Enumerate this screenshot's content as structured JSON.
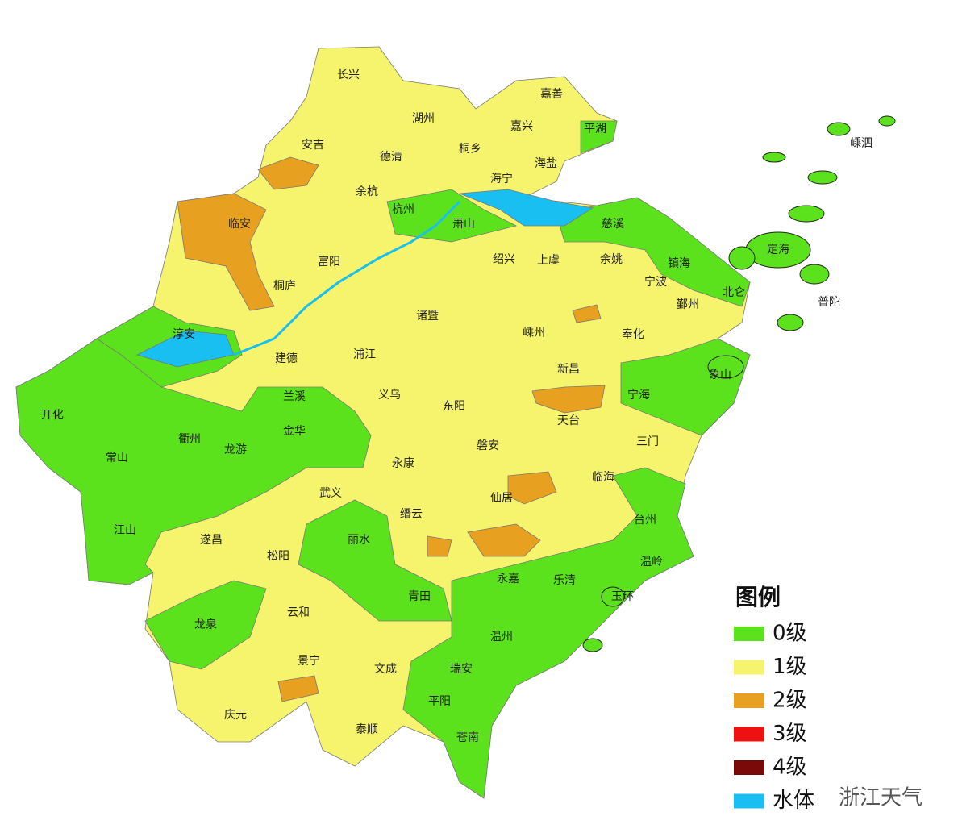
{
  "map": {
    "labels": [
      "长兴",
      "湖州",
      "嘉善",
      "嘉兴",
      "平湖",
      "安吉",
      "德清",
      "桐乡",
      "海盐",
      "海宁",
      "嵊泗",
      "余杭",
      "杭州",
      "萧山",
      "临安",
      "慈溪",
      "定海",
      "富阳",
      "绍兴",
      "上虞",
      "余姚",
      "镇海",
      "桐庐",
      "宁波",
      "北仑",
      "鄞州",
      "普陀",
      "诸暨",
      "嵊州",
      "奉化",
      "淳安",
      "建德",
      "浦江",
      "新昌",
      "象山",
      "宁海",
      "兰溪",
      "义乌",
      "东阳",
      "开化",
      "衢州",
      "龙游",
      "金华",
      "天台",
      "磐安",
      "三门",
      "常山",
      "永康",
      "临海",
      "武义",
      "缙云",
      "仙居",
      "台州",
      "江山",
      "遂昌",
      "松阳",
      "丽水",
      "温岭",
      "永嘉",
      "乐清",
      "玉环",
      "龙泉",
      "云和",
      "青田",
      "温州",
      "景宁",
      "文成",
      "瑞安",
      "庆元",
      "平阳",
      "泰顺",
      "苍南"
    ],
    "legend": {
      "title": "图例",
      "items": [
        {
          "label": "0级",
          "color": "#5ce21c"
        },
        {
          "label": "1级",
          "color": "#f6f46c"
        },
        {
          "label": "2级",
          "color": "#e8a020"
        },
        {
          "label": "3级",
          "color": "#ee1111"
        },
        {
          "label": "4级",
          "color": "#7a0a0a"
        },
        {
          "label": "水体",
          "color": "#18bff0"
        }
      ]
    },
    "watermark": "浙江天气"
  }
}
